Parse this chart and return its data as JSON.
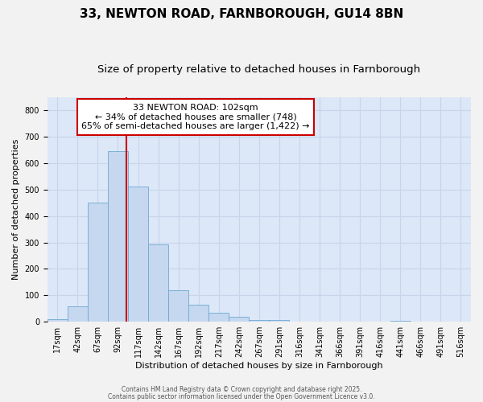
{
  "title1": "33, NEWTON ROAD, FARNBOROUGH, GU14 8BN",
  "title2": "Size of property relative to detached houses in Farnborough",
  "xlabel": "Distribution of detached houses by size in Farnborough",
  "ylabel": "Number of detached properties",
  "bar_labels": [
    "17sqm",
    "42sqm",
    "67sqm",
    "92sqm",
    "117sqm",
    "142sqm",
    "167sqm",
    "192sqm",
    "217sqm",
    "242sqm",
    "267sqm",
    "291sqm",
    "316sqm",
    "341sqm",
    "366sqm",
    "391sqm",
    "416sqm",
    "441sqm",
    "466sqm",
    "491sqm",
    "516sqm"
  ],
  "bar_values": [
    10,
    57,
    450,
    645,
    510,
    292,
    120,
    63,
    35,
    20,
    8,
    7,
    0,
    0,
    0,
    0,
    0,
    5,
    0,
    0,
    0
  ],
  "bar_color": "#c5d8f0",
  "bar_edge_color": "#6fa8d0",
  "vline_color": "#cc0000",
  "vline_x": 3.4,
  "annotation_line1": "33 NEWTON ROAD: 102sqm",
  "annotation_line2": "← 34% of detached houses are smaller (748)",
  "annotation_line3": "65% of semi-detached houses are larger (1,422) →",
  "annotation_box_color": "#ffffff",
  "annotation_box_edge_color": "#cc0000",
  "ylim": [
    0,
    850
  ],
  "yticks": [
    0,
    100,
    200,
    300,
    400,
    500,
    600,
    700,
    800
  ],
  "grid_color": "#c8d4e8",
  "plot_bg_color": "#dce8f8",
  "fig_bg_color": "#f2f2f2",
  "footer1": "Contains HM Land Registry data © Crown copyright and database right 2025.",
  "footer2": "Contains public sector information licensed under the Open Government Licence v3.0.",
  "title_fontsize": 11,
  "subtitle_fontsize": 9.5,
  "annotation_fontsize": 8,
  "axis_label_fontsize": 8,
  "tick_fontsize": 7
}
